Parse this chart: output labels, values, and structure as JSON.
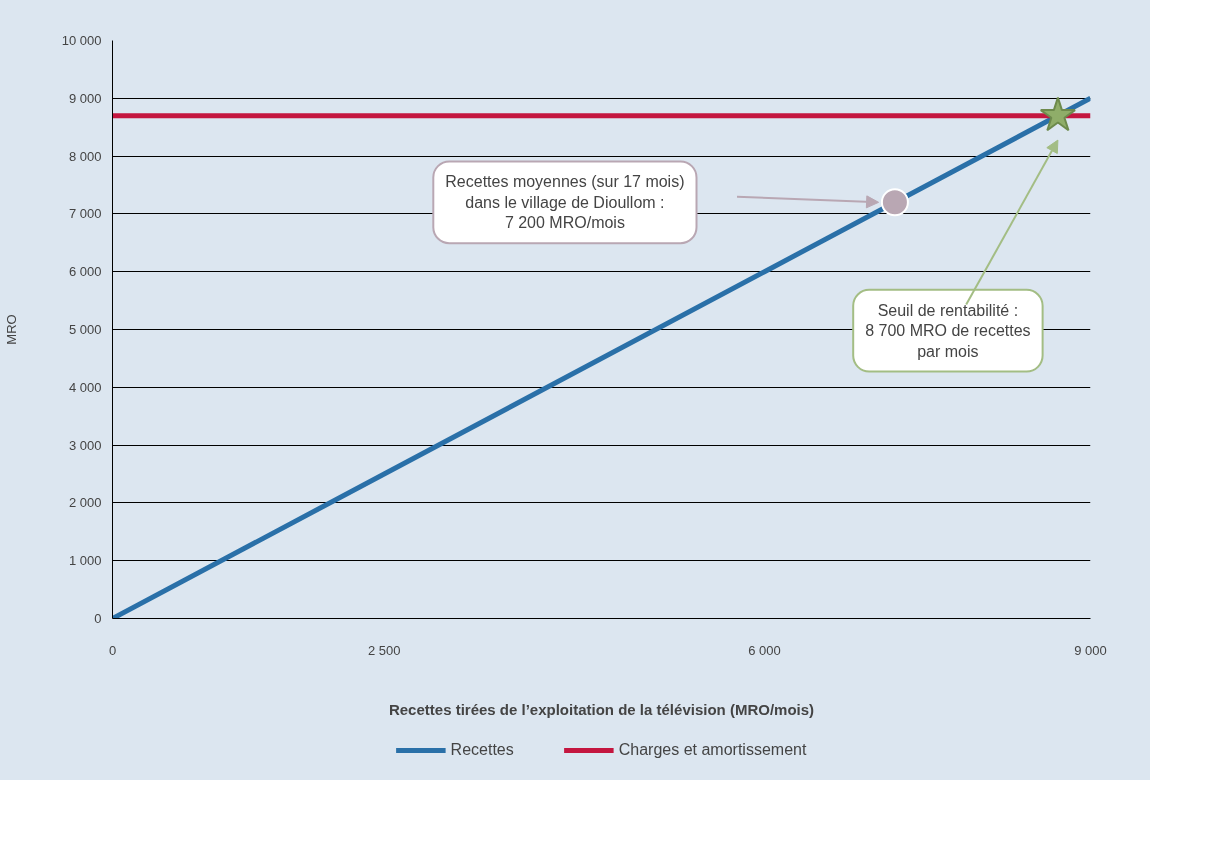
{
  "chart_data": {
    "type": "line",
    "xlabel": "Recettes tirées de l’exploitation de la télévision (MRO/mois)",
    "ylabel": "MRO",
    "x": [
      0,
      2500,
      6000,
      9000
    ],
    "series": [
      {
        "name": "Recettes",
        "color": "#2a70a8",
        "values": [
          0,
          2500,
          6000,
          9000
        ]
      },
      {
        "name": "Charges et amortissement",
        "color": "#c4163f",
        "values": [
          8700,
          8700,
          8700,
          8700
        ]
      },
      {
        "type": "scatter",
        "marker": "circle",
        "color": "#b9a7b3",
        "x": [
          7200
        ],
        "values": [
          7200
        ]
      },
      {
        "type": "scatter",
        "marker": "star",
        "color": "#8fad69",
        "x": [
          8700
        ],
        "values": [
          8700
        ]
      }
    ],
    "xlim": [
      0,
      9000
    ],
    "xticks": [
      {
        "value": 0,
        "label": "0"
      },
      {
        "value": 2500,
        "label": "2 500"
      },
      {
        "value": 6000,
        "label": "6 000"
      },
      {
        "value": 9000,
        "label": "9 000"
      }
    ],
    "ylim": [
      0,
      10000
    ],
    "yticks": [
      {
        "value": 0,
        "label": "0"
      },
      {
        "value": 1000,
        "label": "1 000"
      },
      {
        "value": 2000,
        "label": "2 000"
      },
      {
        "value": 3000,
        "label": "3 000"
      },
      {
        "value": 4000,
        "label": "4 000"
      },
      {
        "value": 5000,
        "label": "5 000"
      },
      {
        "value": 6000,
        "label": "6 000"
      },
      {
        "value": 7000,
        "label": "7 000"
      },
      {
        "value": 8000,
        "label": "8 000"
      },
      {
        "value": 9000,
        "label": "9 000"
      },
      {
        "value": 10000,
        "label": "10 000"
      }
    ],
    "grid": "y",
    "legend": "bottom",
    "marker": "none",
    "line_style": "solid",
    "annotations": [
      "Recettes moyennes (sur 17 mois)\ndans le village de Dioullom :\n7 200 MRO/mois",
      "Seuil de rentabilité :\n8 700 MRO de recettes\npar mois"
    ]
  }
}
